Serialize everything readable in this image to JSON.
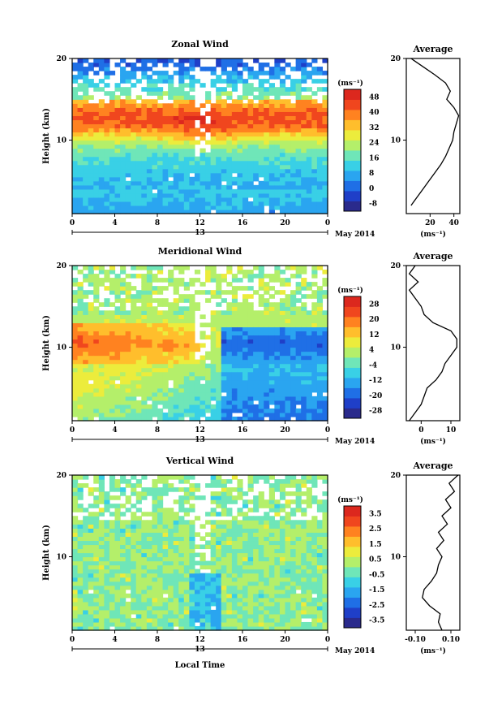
{
  "chart_data": [
    {
      "type": "heatmap",
      "title": "Zonal Wind",
      "ylabel": "Height (km)",
      "y_ticks": [
        "20",
        "10"
      ],
      "xlim": [
        0,
        24
      ],
      "ylim": [
        1,
        20
      ],
      "x_ticks": [
        "0",
        "4",
        "8",
        "12",
        "16",
        "20",
        "0"
      ],
      "day_label": "13",
      "date_label": "May 2014",
      "colorbar": {
        "unit": "(ms⁻¹)",
        "ticks": [
          "48",
          "40",
          "32",
          "24",
          "16",
          "8",
          "0",
          "-8"
        ],
        "range": [
          -12,
          52
        ],
        "colors": [
          "#2a2a8c",
          "#1f3fc8",
          "#1f6fe6",
          "#2aa5f0",
          "#39d0e6",
          "#6fe6b8",
          "#b4ef6a",
          "#ecec3c",
          "#ffbe2c",
          "#ff8220",
          "#f0461e",
          "#dc281e"
        ]
      },
      "profile": {
        "title": "Average",
        "xlabel": "(ms⁻¹)",
        "x_ticks": [
          "20",
          "40"
        ],
        "y_ticks": [
          "20",
          "10"
        ],
        "xlim": [
          0,
          45
        ],
        "heights": [
          2,
          3,
          4,
          5,
          6,
          7,
          8,
          9,
          10,
          11,
          12,
          13,
          14,
          15,
          16,
          17,
          18,
          19,
          20
        ],
        "values": [
          4,
          9,
          14,
          19,
          24,
          29,
          33,
          36,
          39,
          40,
          42,
          44,
          40,
          34,
          37,
          33,
          24,
          14,
          4
        ]
      }
    },
    {
      "type": "heatmap",
      "title": "Meridional Wind",
      "ylabel": "Height (km)",
      "y_ticks": [
        "20",
        "10"
      ],
      "xlim": [
        0,
        24
      ],
      "ylim": [
        1,
        20
      ],
      "x_ticks": [
        "0",
        "4",
        "8",
        "12",
        "16",
        "20",
        "0"
      ],
      "day_label": "13",
      "date_label": "May 2014",
      "colorbar": {
        "unit": "(ms⁻¹)",
        "ticks": [
          "28",
          "20",
          "12",
          "4",
          "-4",
          "-12",
          "-20",
          "-28"
        ],
        "range": [
          -32,
          32
        ],
        "colors": [
          "#2a2a8c",
          "#1f3fc8",
          "#1f6fe6",
          "#2aa5f0",
          "#39d0e6",
          "#6fe6b8",
          "#b4ef6a",
          "#ecec3c",
          "#ffbe2c",
          "#ff8220",
          "#f0461e",
          "#dc281e"
        ]
      },
      "profile": {
        "title": "Average",
        "xlabel": "(ms⁻¹)",
        "x_ticks": [
          "0",
          "10"
        ],
        "y_ticks": [
          "20",
          "10"
        ],
        "xlim": [
          -5,
          13
        ],
        "heights": [
          1,
          2,
          3,
          4,
          5,
          6,
          7,
          8,
          9,
          10,
          11,
          12,
          13,
          14,
          15,
          16,
          17,
          18,
          19,
          20
        ],
        "values": [
          -4,
          -2,
          0,
          1,
          2,
          5,
          7,
          8,
          10,
          12,
          12,
          10,
          4,
          1,
          0,
          -2,
          -4,
          -1,
          -4,
          -2
        ]
      }
    },
    {
      "type": "heatmap",
      "title": "Vertical Wind",
      "ylabel": "Height (km)",
      "y_ticks": [
        "20",
        "10"
      ],
      "xlim": [
        0,
        24
      ],
      "ylim": [
        1,
        20
      ],
      "x_ticks": [
        "0",
        "4",
        "8",
        "12",
        "16",
        "20",
        "0"
      ],
      "day_label": "13",
      "date_label": "May 2014",
      "xlabel": "Local Time",
      "colorbar": {
        "unit": "(ms⁻¹)",
        "ticks": [
          "3.5",
          "2.5",
          "1.5",
          "0.5",
          "-0.5",
          "-1.5",
          "-2.5",
          "-3.5"
        ],
        "range": [
          -4,
          4
        ],
        "colors": [
          "#2a2a8c",
          "#1f3fc8",
          "#1f6fe6",
          "#2aa5f0",
          "#39d0e6",
          "#6fe6b8",
          "#b4ef6a",
          "#ecec3c",
          "#ffbe2c",
          "#ff8220",
          "#f0461e",
          "#dc281e"
        ]
      },
      "profile": {
        "title": "Average",
        "xlabel": "(ms⁻¹)",
        "x_ticks": [
          "-0.10",
          "0.10"
        ],
        "y_ticks": [
          "20",
          "10"
        ],
        "xlim": [
          -0.15,
          0.15
        ],
        "heights": [
          1,
          2,
          3,
          4,
          5,
          6,
          7,
          8,
          9,
          10,
          11,
          12,
          13,
          14,
          15,
          16,
          17,
          18,
          19,
          20
        ],
        "values": [
          0.05,
          0.03,
          0.04,
          -0.02,
          -0.06,
          -0.05,
          -0.01,
          0.02,
          0.03,
          0.05,
          0.02,
          0.06,
          0.03,
          0.08,
          0.05,
          0.1,
          0.07,
          0.12,
          0.09,
          0.14
        ]
      }
    }
  ]
}
